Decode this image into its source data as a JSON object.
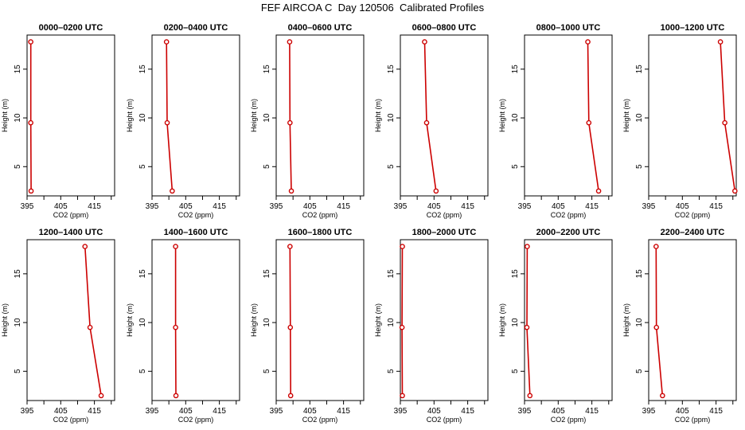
{
  "title": "FEF AIRCOA C  Day 120506  Calibrated Profiles",
  "colors": {
    "series": "#cc0000",
    "axis": "#000000",
    "background": "#ffffff"
  },
  "chart_data": [
    {
      "type": "line",
      "title": "0000–0200 UTC",
      "xlabel": "CO2 (ppm)",
      "ylabel": "Height (m)",
      "xlim": [
        395,
        421
      ],
      "ylim": [
        2,
        18.5
      ],
      "xticks": [
        395,
        405,
        415
      ],
      "yticks": [
        5,
        10,
        15
      ],
      "grid": false,
      "points": [
        {
          "x": 396.1,
          "y": 17.8
        },
        {
          "x": 396.1,
          "y": 9.5
        },
        {
          "x": 396.2,
          "y": 2.5
        }
      ]
    },
    {
      "type": "line",
      "title": "0200–0400 UTC",
      "xlabel": "CO2 (ppm)",
      "ylabel": "Height (m)",
      "xlim": [
        395,
        421
      ],
      "ylim": [
        2,
        18.5
      ],
      "xticks": [
        395,
        405,
        415
      ],
      "yticks": [
        5,
        10,
        15
      ],
      "grid": false,
      "points": [
        {
          "x": 399.3,
          "y": 17.8
        },
        {
          "x": 399.5,
          "y": 9.5
        },
        {
          "x": 401.0,
          "y": 2.5
        }
      ]
    },
    {
      "type": "line",
      "title": "0400–0600 UTC",
      "xlabel": "CO2 (ppm)",
      "ylabel": "Height (m)",
      "xlim": [
        395,
        421
      ],
      "ylim": [
        2,
        18.5
      ],
      "xticks": [
        395,
        405,
        415
      ],
      "yticks": [
        5,
        10,
        15
      ],
      "grid": false,
      "points": [
        {
          "x": 399.0,
          "y": 17.8
        },
        {
          "x": 399.1,
          "y": 9.5
        },
        {
          "x": 399.5,
          "y": 2.5
        }
      ]
    },
    {
      "type": "line",
      "title": "0600–0800 UTC",
      "xlabel": "CO2 (ppm)",
      "ylabel": "Height (m)",
      "xlim": [
        395,
        421
      ],
      "ylim": [
        2,
        18.5
      ],
      "xticks": [
        395,
        405,
        415
      ],
      "yticks": [
        5,
        10,
        15
      ],
      "grid": false,
      "points": [
        {
          "x": 402.2,
          "y": 17.8
        },
        {
          "x": 402.8,
          "y": 9.5
        },
        {
          "x": 405.6,
          "y": 2.5
        }
      ]
    },
    {
      "type": "line",
      "title": "0800–1000 UTC",
      "xlabel": "CO2 (ppm)",
      "ylabel": "Height (m)",
      "xlim": [
        395,
        421
      ],
      "ylim": [
        2,
        18.5
      ],
      "xticks": [
        395,
        405,
        415
      ],
      "yticks": [
        5,
        10,
        15
      ],
      "grid": false,
      "points": [
        {
          "x": 413.8,
          "y": 17.8
        },
        {
          "x": 414.1,
          "y": 9.5
        },
        {
          "x": 417.0,
          "y": 2.5
        }
      ]
    },
    {
      "type": "line",
      "title": "1000–1200 UTC",
      "xlabel": "CO2 (ppm)",
      "ylabel": "Height (m)",
      "xlim": [
        395,
        421
      ],
      "ylim": [
        2,
        18.5
      ],
      "xticks": [
        395,
        405,
        415
      ],
      "yticks": [
        5,
        10,
        15
      ],
      "grid": false,
      "points": [
        {
          "x": 416.3,
          "y": 17.8
        },
        {
          "x": 417.6,
          "y": 9.5
        },
        {
          "x": 420.6,
          "y": 2.5
        }
      ]
    },
    {
      "type": "line",
      "title": "1200–1400 UTC",
      "xlabel": "CO2 (ppm)",
      "ylabel": "Height (m)",
      "xlim": [
        395,
        421
      ],
      "ylim": [
        2,
        18.5
      ],
      "xticks": [
        395,
        405,
        415
      ],
      "yticks": [
        5,
        10,
        15
      ],
      "grid": false,
      "points": [
        {
          "x": 412.2,
          "y": 17.8
        },
        {
          "x": 413.7,
          "y": 9.5
        },
        {
          "x": 417.0,
          "y": 2.5
        }
      ]
    },
    {
      "type": "line",
      "title": "1400–1600 UTC",
      "xlabel": "CO2 (ppm)",
      "ylabel": "Height (m)",
      "xlim": [
        395,
        421
      ],
      "ylim": [
        2,
        18.5
      ],
      "xticks": [
        395,
        405,
        415
      ],
      "yticks": [
        5,
        10,
        15
      ],
      "grid": false,
      "points": [
        {
          "x": 402.0,
          "y": 17.8
        },
        {
          "x": 402.0,
          "y": 9.5
        },
        {
          "x": 402.1,
          "y": 2.5
        }
      ]
    },
    {
      "type": "line",
      "title": "1600–1800 UTC",
      "xlabel": "CO2 (ppm)",
      "ylabel": "Height (m)",
      "xlim": [
        395,
        421
      ],
      "ylim": [
        2,
        18.5
      ],
      "xticks": [
        395,
        405,
        415
      ],
      "yticks": [
        5,
        10,
        15
      ],
      "grid": false,
      "points": [
        {
          "x": 399.1,
          "y": 17.8
        },
        {
          "x": 399.2,
          "y": 9.5
        },
        {
          "x": 399.3,
          "y": 2.5
        }
      ]
    },
    {
      "type": "line",
      "title": "1800–2000 UTC",
      "xlabel": "CO2 (ppm)",
      "ylabel": "Height (m)",
      "xlim": [
        395,
        421
      ],
      "ylim": [
        2,
        18.5
      ],
      "xticks": [
        395,
        405,
        415
      ],
      "yticks": [
        5,
        10,
        15
      ],
      "grid": false,
      "points": [
        {
          "x": 395.6,
          "y": 17.8
        },
        {
          "x": 395.5,
          "y": 9.5
        },
        {
          "x": 395.6,
          "y": 2.5
        }
      ]
    },
    {
      "type": "line",
      "title": "2000–2200 UTC",
      "xlabel": "CO2 (ppm)",
      "ylabel": "Height (m)",
      "xlim": [
        395,
        421
      ],
      "ylim": [
        2,
        18.5
      ],
      "xticks": [
        395,
        405,
        415
      ],
      "yticks": [
        5,
        10,
        15
      ],
      "grid": false,
      "points": [
        {
          "x": 395.8,
          "y": 17.8
        },
        {
          "x": 395.7,
          "y": 9.5
        },
        {
          "x": 396.6,
          "y": 2.5
        }
      ]
    },
    {
      "type": "line",
      "title": "2200–2400 UTC",
      "xlabel": "CO2 (ppm)",
      "ylabel": "Height (m)",
      "xlim": [
        395,
        421
      ],
      "ylim": [
        2,
        18.5
      ],
      "xticks": [
        395,
        405,
        415
      ],
      "yticks": [
        5,
        10,
        15
      ],
      "grid": false,
      "points": [
        {
          "x": 397.2,
          "y": 17.8
        },
        {
          "x": 397.3,
          "y": 9.5
        },
        {
          "x": 399.1,
          "y": 2.5
        }
      ]
    }
  ]
}
